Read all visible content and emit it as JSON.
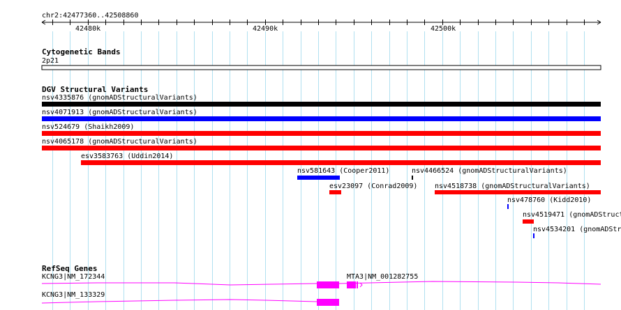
{
  "location": "chr2:42477360..42508860",
  "ruler_ticks": [
    "42480k",
    "42490k",
    "42500k"
  ],
  "tracks": {
    "cytoband": {
      "title": "Cytogenetic Bands",
      "band": "2p21"
    },
    "dgv": {
      "title": "DGV Structural Variants",
      "variants": [
        {
          "label": "nsv4335876 (gnomADStructuralVariants)",
          "color": "#000000"
        },
        {
          "label": "nsv4071913 (gnomADStructuralVariants)",
          "color": "#0000ff"
        },
        {
          "label": "nsv524679 (Shaikh2009)",
          "color": "#ff0000"
        },
        {
          "label": "nsv4065178 (gnomADStructuralVariants)",
          "color": "#ff0000"
        },
        {
          "label": "esv3583763 (Uddin2014)",
          "color": "#ff0000"
        },
        {
          "label": "nsv581643 (Cooper2011)",
          "color": "#0000ff"
        },
        {
          "label": "nsv4466524 (gnomADStructuralVariants)",
          "color": "#000000"
        },
        {
          "label": "esv23097 (Conrad2009)",
          "color": "#ff0000"
        },
        {
          "label": "nsv4518738 (gnomADStructuralVariants)",
          "color": "#ff0000"
        },
        {
          "label": "nsv478760 (Kidd2010)",
          "color": "#0000ff"
        },
        {
          "label": "nsv4519471 (gnomADStruct",
          "color": "#ff0000"
        },
        {
          "label": "nsv4534201 (gnomADStr",
          "color": "#0000ff"
        }
      ]
    },
    "refseq": {
      "title": "RefSeq Genes",
      "color": "#ff00ff",
      "genes": [
        {
          "label": "KCNG3|NM_172344"
        },
        {
          "label": "MTA3|NM_001282755"
        },
        {
          "label": "KCNG3|NM_133329"
        }
      ]
    }
  },
  "colors": {
    "gridline": "#b0e0f0",
    "feature_pink": "#ff00ff"
  }
}
